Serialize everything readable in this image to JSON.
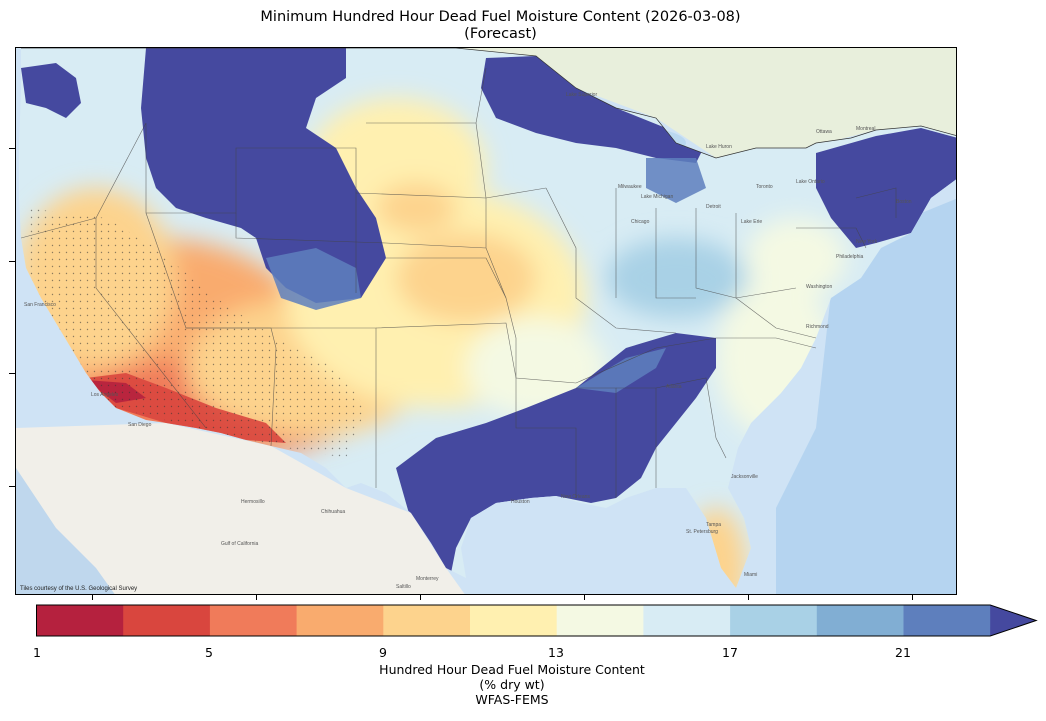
{
  "title": {
    "line1": "Minimum Hundred Hour Dead Fuel Moisture Content (2026-03-08)",
    "line2": "(Forecast)"
  },
  "map": {
    "credit": "Tiles courtesy of the U.S. Geological Survey",
    "basemap_labels": [
      "San Francisco",
      "Los Angeles",
      "San Diego",
      "Hermosillo",
      "Chihuahua",
      "Monterrey",
      "Saltillo",
      "Gulf of California",
      "Lake Superior",
      "Lake Michigan",
      "Lake Huron",
      "Lake Erie",
      "Lake Ontario",
      "Milwaukee",
      "Chicago",
      "Detroit",
      "Toronto",
      "Ottawa",
      "Montreal",
      "Boston",
      "New York",
      "Philadelphia",
      "Washington",
      "Richmond",
      "Atlanta",
      "Jacksonville",
      "Tampa",
      "St. Petersburg",
      "Miami",
      "New Orleans",
      "Houston"
    ],
    "colors": {
      "ocean": "#cfe3f5",
      "land": "#eef0e6",
      "mexico_land": "#f1efe9"
    }
  },
  "colorbar": {
    "bins": [
      {
        "min": 1,
        "max": 3,
        "color": "#b5213e"
      },
      {
        "min": 3,
        "max": 5,
        "color": "#d9463e"
      },
      {
        "min": 5,
        "max": 7,
        "color": "#f07b5a"
      },
      {
        "min": 7,
        "max": 9,
        "color": "#f9ab6e"
      },
      {
        "min": 9,
        "max": 11,
        "color": "#fdd38d"
      },
      {
        "min": 11,
        "max": 13,
        "color": "#fff0b0"
      },
      {
        "min": 13,
        "max": 15,
        "color": "#f4f9e3"
      },
      {
        "min": 15,
        "max": 17,
        "color": "#d8ecf4"
      },
      {
        "min": 17,
        "max": 19,
        "color": "#a9d1e6"
      },
      {
        "min": 19,
        "max": 21,
        "color": "#81aed3"
      },
      {
        "min": 21,
        "max": 23,
        "color": "#5e7fbd"
      }
    ],
    "extend_color": "#45499f",
    "ticks": [
      "1",
      "5",
      "9",
      "13",
      "17",
      "21"
    ],
    "label_line1": "Hundred Hour Dead Fuel Moisture Content",
    "label_line2": "(% dry wt)",
    "label_line3": "WFAS-FEMS"
  }
}
